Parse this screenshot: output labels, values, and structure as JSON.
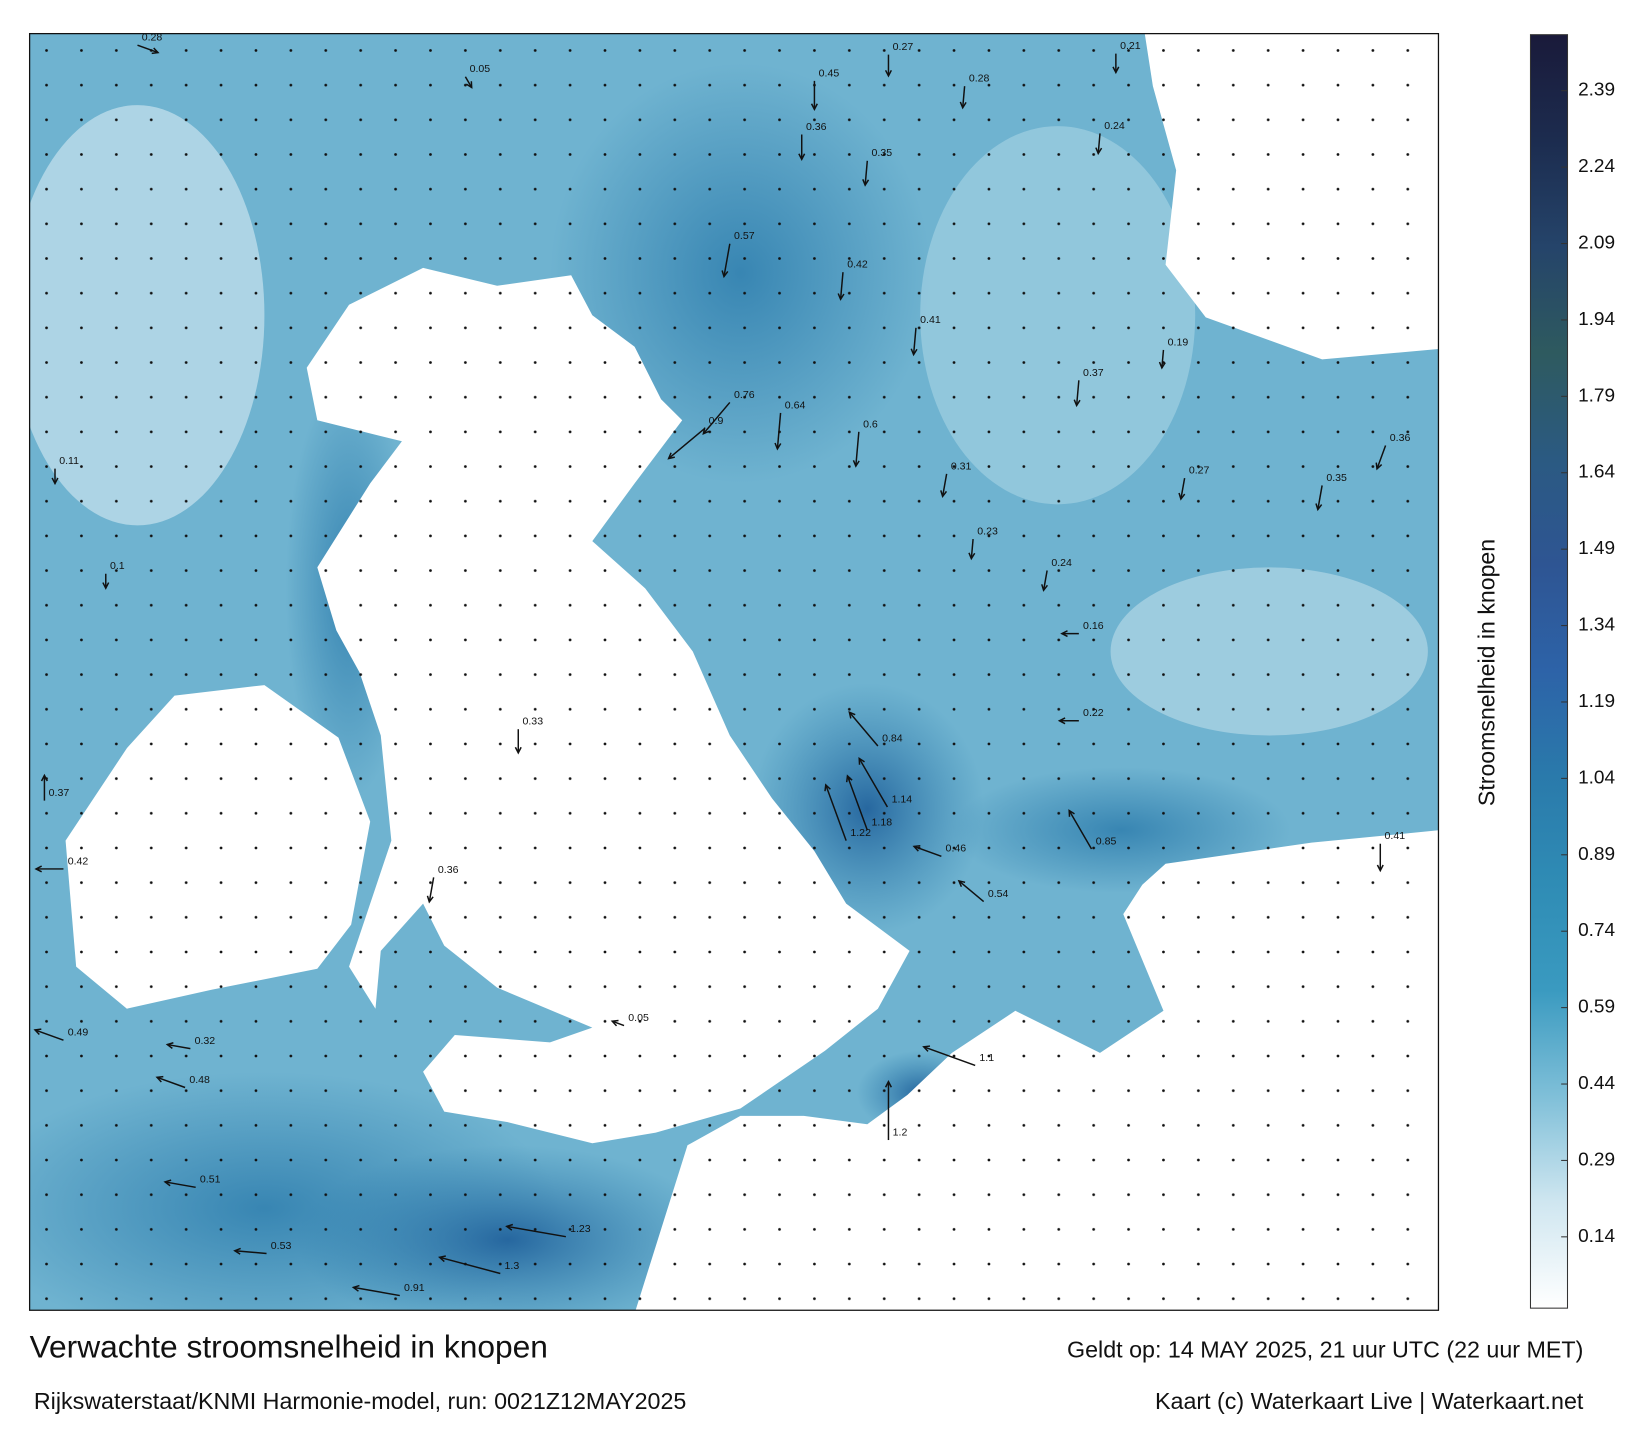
{
  "title": "Verwachte stroomsnelheid in knopen",
  "valid_time": "Geldt op: 14 MAY 2025, 21 uur UTC (22 uur MET)",
  "model_run": "Rijkswaterstaat/KNMI Harmonie-model, run: 0021Z12MAY2025",
  "credit": "Kaart (c) Waterkaart Live | Waterkaart.net",
  "colorbar": {
    "label": "Stroomsnelheid in knopen",
    "lim": [
      0,
      2.5
    ],
    "ticks": [
      0.14,
      0.29,
      0.44,
      0.59,
      0.74,
      0.89,
      1.04,
      1.19,
      1.34,
      1.49,
      1.64,
      1.79,
      1.94,
      2.09,
      2.24,
      2.39
    ],
    "colors": [
      "#ffffff",
      "#cfe6f0",
      "#7fbfd8",
      "#3a9ac0",
      "#2f8cb5",
      "#2a7aab",
      "#2d63a8",
      "#2e5593",
      "#2b5a82",
      "#2e5a5f",
      "#25446a",
      "#1c2c4f",
      "#1a1a3a"
    ]
  },
  "current_labels": [
    0.28,
    0.27,
    0.21,
    0.45,
    0.28,
    0.36,
    0.35,
    0.24,
    0.57,
    0.42,
    0.41,
    0.76,
    0.9,
    0.64,
    0.6,
    0.31,
    0.27,
    0.23,
    0.24,
    0.84,
    1.14,
    1.22,
    0.85,
    1.18,
    0.54,
    1.1,
    1.2,
    1.23,
    1.3,
    0.91,
    0.53,
    0.51,
    0.48,
    0.49,
    0.32,
    0.37,
    0.42,
    0.11,
    0.1,
    0.19,
    0.37,
    0.35,
    0.36,
    0.41,
    0.22,
    0.16,
    0.05,
    0.33,
    0.36,
    0.46,
    0.05
  ]
}
